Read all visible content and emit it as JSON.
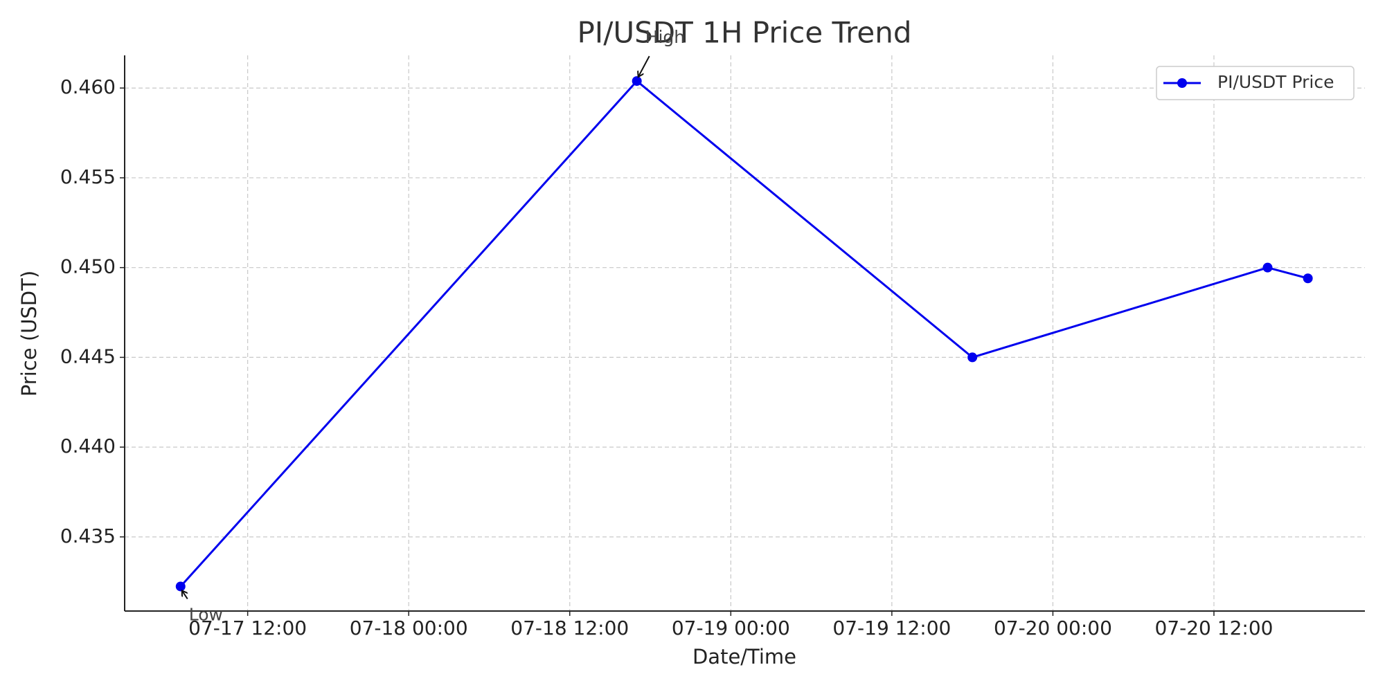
{
  "chart_data": {
    "type": "line",
    "title": "PI/USDT 1H Price Trend",
    "x_label": "Date/Time",
    "y_label": "Price (USDT)",
    "x": [
      "07-17 07:00",
      "07-18 17:00",
      "07-19 18:00",
      "07-20 16:00",
      "07-20 19:00"
    ],
    "series": [
      {
        "name": "PI/USDT Price",
        "color": "#0000ee",
        "values": [
          0.43224,
          0.46039,
          0.445,
          0.45,
          0.4494
        ]
      }
    ],
    "xlim": [
      "07-17 02:50",
      "07-20 23:15"
    ],
    "xticks": [
      "07-17 12:00",
      "07-18 00:00",
      "07-18 12:00",
      "07-19 00:00",
      "07-19 12:00",
      "07-20 00:00",
      "07-20 12:00"
    ],
    "ylim": [
      0.43087,
      0.46182
    ],
    "yticks": [
      {
        "value": 0.46,
        "label": "0.460"
      },
      0.455,
      {
        "value": 0.45,
        "label": "0.450"
      },
      0.445,
      {
        "value": 0.44,
        "label": "0.440"
      },
      0.435
    ],
    "grid": true,
    "legend": "upper right",
    "annotations": [
      {
        "text": "High",
        "at": "max"
      },
      {
        "text": "Low",
        "at": "min"
      }
    ]
  }
}
